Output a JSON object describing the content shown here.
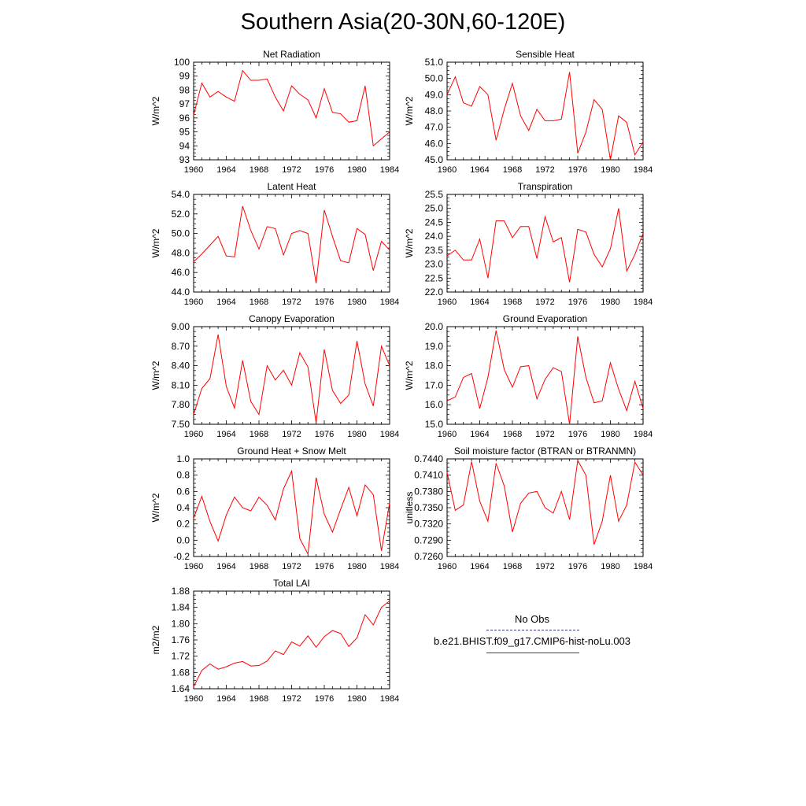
{
  "figure": {
    "title": "Southern Asia(20-30N,60-120E)",
    "line_color": "#ff0000",
    "obs_line_color": "#3a3a8f",
    "legend": {
      "obs_label": "No Obs",
      "case_label": "b.e21.BHIST.f09_g17.CMIP6-hist-noLu.003"
    }
  },
  "chart_data": [
    {
      "type": "line",
      "title": "Net Radiation",
      "ylabel": "W/m^2",
      "xlim": [
        1960,
        1984
      ],
      "ylim": [
        93,
        100
      ],
      "x_ticks": [
        1960,
        1964,
        1968,
        1972,
        1976,
        1980,
        1984
      ],
      "x_tick_labels": [
        "1960",
        "1964",
        "1968",
        "1972",
        "1976",
        "1980",
        "1984"
      ],
      "y_ticks": [
        93,
        94,
        95,
        96,
        97,
        98,
        99,
        100
      ],
      "y_tick_labels": [
        "93",
        "94",
        "95",
        "96",
        "97",
        "98",
        "99",
        "100"
      ],
      "x": [
        1960,
        1961,
        1962,
        1963,
        1964,
        1965,
        1966,
        1967,
        1968,
        1969,
        1970,
        1971,
        1972,
        1973,
        1974,
        1975,
        1976,
        1977,
        1978,
        1979,
        1980,
        1981,
        1982,
        1983,
        1984
      ],
      "series": [
        {
          "values": [
            96.2,
            98.5,
            97.5,
            97.9,
            97.5,
            97.2,
            99.4,
            98.7,
            98.7,
            98.8,
            97.5,
            96.5,
            98.3,
            97.7,
            97.3,
            96.0,
            98.1,
            96.4,
            96.3,
            95.7,
            95.8,
            98.3,
            94.0,
            94.5,
            95.0
          ]
        }
      ]
    },
    {
      "type": "line",
      "title": "Sensible Heat",
      "ylabel": "W/m^2",
      "xlim": [
        1960,
        1984
      ],
      "ylim": [
        45,
        51
      ],
      "x_ticks": [
        1960,
        1964,
        1968,
        1972,
        1976,
        1980,
        1984
      ],
      "x_tick_labels": [
        "1960",
        "1964",
        "1968",
        "1972",
        "1976",
        "1980",
        "1984"
      ],
      "y_ticks": [
        45,
        46,
        47,
        48,
        49,
        50,
        51
      ],
      "y_tick_labels": [
        "45.0",
        "46.0",
        "47.0",
        "48.0",
        "49.0",
        "50.0",
        "51.0"
      ],
      "x": [
        1960,
        1961,
        1962,
        1963,
        1964,
        1965,
        1966,
        1967,
        1968,
        1969,
        1970,
        1971,
        1972,
        1973,
        1974,
        1975,
        1976,
        1977,
        1978,
        1979,
        1980,
        1981,
        1982,
        1983,
        1984
      ],
      "series": [
        {
          "values": [
            49.0,
            50.1,
            48.5,
            48.3,
            49.5,
            49.0,
            46.2,
            48.1,
            49.7,
            47.7,
            46.8,
            48.1,
            47.4,
            47.4,
            47.5,
            50.4,
            45.4,
            46.7,
            48.7,
            48.1,
            45.0,
            47.7,
            47.3,
            45.3,
            46.1
          ]
        }
      ]
    },
    {
      "type": "line",
      "title": "Latent Heat",
      "ylabel": "W/m^2",
      "xlim": [
        1960,
        1984
      ],
      "ylim": [
        44,
        54
      ],
      "x_ticks": [
        1960,
        1964,
        1968,
        1972,
        1976,
        1980,
        1984
      ],
      "x_tick_labels": [
        "1960",
        "1964",
        "1968",
        "1972",
        "1976",
        "1980",
        "1984"
      ],
      "y_ticks": [
        44,
        46,
        48,
        50,
        52,
        54
      ],
      "y_tick_labels": [
        "44.0",
        "46.0",
        "48.0",
        "50.0",
        "52.0",
        "54.0"
      ],
      "x": [
        1960,
        1961,
        1962,
        1963,
        1964,
        1965,
        1966,
        1967,
        1968,
        1969,
        1970,
        1971,
        1972,
        1973,
        1974,
        1975,
        1976,
        1977,
        1978,
        1979,
        1980,
        1981,
        1982,
        1983,
        1984
      ],
      "series": [
        {
          "values": [
            47.1,
            47.9,
            48.8,
            49.7,
            47.7,
            47.6,
            52.8,
            50.3,
            48.4,
            50.7,
            50.5,
            47.8,
            50.0,
            50.3,
            50.0,
            44.9,
            52.4,
            49.7,
            47.2,
            47.0,
            50.5,
            49.9,
            46.2,
            49.2,
            48.3
          ]
        }
      ]
    },
    {
      "type": "line",
      "title": "Transpiration",
      "ylabel": "W/m^2",
      "xlim": [
        1960,
        1984
      ],
      "ylim": [
        22,
        25.5
      ],
      "x_ticks": [
        1960,
        1964,
        1968,
        1972,
        1976,
        1980,
        1984
      ],
      "x_tick_labels": [
        "1960",
        "1964",
        "1968",
        "1972",
        "1976",
        "1980",
        "1984"
      ],
      "y_ticks": [
        22,
        22.5,
        23,
        23.5,
        24,
        24.5,
        25,
        25.5
      ],
      "y_tick_labels": [
        "22.0",
        "22.5",
        "23.0",
        "23.5",
        "24.0",
        "24.5",
        "25.0",
        "25.5"
      ],
      "x": [
        1960,
        1961,
        1962,
        1963,
        1964,
        1965,
        1966,
        1967,
        1968,
        1969,
        1970,
        1971,
        1972,
        1973,
        1974,
        1975,
        1976,
        1977,
        1978,
        1979,
        1980,
        1981,
        1982,
        1983,
        1984
      ],
      "series": [
        {
          "values": [
            23.3,
            23.5,
            23.15,
            23.15,
            23.9,
            22.5,
            24.55,
            24.55,
            23.95,
            24.35,
            24.35,
            23.2,
            24.7,
            23.8,
            23.95,
            22.35,
            24.25,
            24.15,
            23.35,
            22.9,
            23.55,
            25.0,
            22.75,
            23.35,
            24.1
          ]
        }
      ]
    },
    {
      "type": "line",
      "title": "Canopy Evaporation",
      "ylabel": "W/m^2",
      "xlim": [
        1960,
        1984
      ],
      "ylim": [
        7.5,
        9.0
      ],
      "x_ticks": [
        1960,
        1964,
        1968,
        1972,
        1976,
        1980,
        1984
      ],
      "x_tick_labels": [
        "1960",
        "1964",
        "1968",
        "1972",
        "1976",
        "1980",
        "1984"
      ],
      "y_ticks": [
        7.5,
        7.8,
        8.1,
        8.4,
        8.7,
        9.0
      ],
      "y_tick_labels": [
        "7.50",
        "7.80",
        "8.10",
        "8.40",
        "8.70",
        "9.00"
      ],
      "x": [
        1960,
        1961,
        1962,
        1963,
        1964,
        1965,
        1966,
        1967,
        1968,
        1969,
        1970,
        1971,
        1972,
        1973,
        1974,
        1975,
        1976,
        1977,
        1978,
        1979,
        1980,
        1981,
        1982,
        1983,
        1984
      ],
      "series": [
        {
          "values": [
            7.65,
            8.05,
            8.2,
            8.88,
            8.08,
            7.75,
            8.48,
            7.85,
            7.65,
            8.4,
            8.18,
            8.33,
            8.1,
            8.6,
            8.38,
            7.52,
            8.65,
            8.02,
            7.82,
            7.95,
            8.78,
            8.12,
            7.78,
            8.7,
            8.4
          ]
        }
      ]
    },
    {
      "type": "line",
      "title": "Ground Evaporation",
      "ylabel": "W/m^2",
      "xlim": [
        1960,
        1984
      ],
      "ylim": [
        15,
        20
      ],
      "x_ticks": [
        1960,
        1964,
        1968,
        1972,
        1976,
        1980,
        1984
      ],
      "x_tick_labels": [
        "1960",
        "1964",
        "1968",
        "1972",
        "1976",
        "1980",
        "1984"
      ],
      "y_ticks": [
        15,
        16,
        17,
        18,
        19,
        20
      ],
      "y_tick_labels": [
        "15.0",
        "16.0",
        "17.0",
        "18.0",
        "19.0",
        "20.0"
      ],
      "x": [
        1960,
        1961,
        1962,
        1963,
        1964,
        1965,
        1966,
        1967,
        1968,
        1969,
        1970,
        1971,
        1972,
        1973,
        1974,
        1975,
        1976,
        1977,
        1978,
        1979,
        1980,
        1981,
        1982,
        1983,
        1984
      ],
      "series": [
        {
          "values": [
            16.2,
            16.4,
            17.4,
            17.6,
            15.8,
            17.4,
            19.8,
            17.8,
            16.9,
            17.95,
            18.0,
            16.3,
            17.3,
            17.9,
            17.7,
            15.0,
            19.5,
            17.4,
            16.1,
            16.2,
            18.15,
            16.8,
            15.7,
            17.2,
            15.8
          ]
        }
      ]
    },
    {
      "type": "line",
      "title": "Ground Heat + Snow Melt",
      "ylabel": "W/m^2",
      "xlim": [
        1960,
        1984
      ],
      "ylim": [
        -0.2,
        1.0
      ],
      "x_ticks": [
        1960,
        1964,
        1968,
        1972,
        1976,
        1980,
        1984
      ],
      "x_tick_labels": [
        "1960",
        "1964",
        "1968",
        "1972",
        "1976",
        "1980",
        "1984"
      ],
      "y_ticks": [
        -0.2,
        0.0,
        0.2,
        0.4,
        0.6,
        0.8,
        1.0
      ],
      "y_tick_labels": [
        "-0.2",
        "0.0",
        "0.2",
        "0.4",
        "0.6",
        "0.8",
        "1.0"
      ],
      "x": [
        1960,
        1961,
        1962,
        1963,
        1964,
        1965,
        1966,
        1967,
        1968,
        1969,
        1970,
        1971,
        1972,
        1973,
        1974,
        1975,
        1976,
        1977,
        1978,
        1979,
        1980,
        1981,
        1982,
        1983,
        1984
      ],
      "series": [
        {
          "values": [
            0.27,
            0.54,
            0.23,
            -0.01,
            0.31,
            0.53,
            0.4,
            0.36,
            0.53,
            0.43,
            0.25,
            0.63,
            0.85,
            0.02,
            -0.17,
            0.77,
            0.32,
            0.1,
            0.38,
            0.65,
            0.3,
            0.68,
            0.56,
            -0.13,
            0.46
          ]
        }
      ]
    },
    {
      "type": "line",
      "title": "Soil moisture factor (BTRAN or BTRANMN)",
      "ylabel": "unitless",
      "xlim": [
        1960,
        1984
      ],
      "ylim": [
        0.726,
        0.744
      ],
      "x_ticks": [
        1960,
        1964,
        1968,
        1972,
        1976,
        1980,
        1984
      ],
      "x_tick_labels": [
        "1960",
        "1964",
        "1968",
        "1972",
        "1976",
        "1980",
        "1984"
      ],
      "y_ticks": [
        0.726,
        0.729,
        0.732,
        0.735,
        0.738,
        0.741,
        0.744
      ],
      "y_tick_labels": [
        "0.7260",
        "0.7290",
        "0.7320",
        "0.7350",
        "0.7380",
        "0.7410",
        "0.7440"
      ],
      "x": [
        1960,
        1961,
        1962,
        1963,
        1964,
        1965,
        1966,
        1967,
        1968,
        1969,
        1970,
        1971,
        1972,
        1973,
        1974,
        1975,
        1976,
        1977,
        1978,
        1979,
        1980,
        1981,
        1982,
        1983,
        1984
      ],
      "series": [
        {
          "values": [
            0.7415,
            0.7345,
            0.7355,
            0.7435,
            0.7362,
            0.7325,
            0.7432,
            0.739,
            0.7305,
            0.7358,
            0.7377,
            0.738,
            0.735,
            0.734,
            0.738,
            0.7328,
            0.7437,
            0.741,
            0.7282,
            0.7325,
            0.741,
            0.7325,
            0.7355,
            0.7434,
            0.741
          ]
        }
      ]
    },
    {
      "type": "line",
      "title": "Total LAI",
      "ylabel": "m2/m2",
      "xlim": [
        1960,
        1984
      ],
      "ylim": [
        1.64,
        1.88
      ],
      "x_ticks": [
        1960,
        1964,
        1968,
        1972,
        1976,
        1980,
        1984
      ],
      "x_tick_labels": [
        "1960",
        "1964",
        "1968",
        "1972",
        "1976",
        "1980",
        "1984"
      ],
      "y_ticks": [
        1.64,
        1.68,
        1.72,
        1.76,
        1.8,
        1.84,
        1.88
      ],
      "y_tick_labels": [
        "1.64",
        "1.68",
        "1.72",
        "1.76",
        "1.80",
        "1.84",
        "1.88"
      ],
      "x": [
        1960,
        1961,
        1962,
        1963,
        1964,
        1965,
        1966,
        1967,
        1968,
        1969,
        1970,
        1971,
        1972,
        1973,
        1974,
        1975,
        1976,
        1977,
        1978,
        1979,
        1980,
        1981,
        1982,
        1983,
        1984
      ],
      "series": [
        {
          "values": [
            1.645,
            1.685,
            1.701,
            1.688,
            1.694,
            1.703,
            1.707,
            1.696,
            1.697,
            1.708,
            1.733,
            1.724,
            1.755,
            1.745,
            1.77,
            1.742,
            1.768,
            1.783,
            1.776,
            1.744,
            1.765,
            1.822,
            1.797,
            1.84,
            1.856
          ]
        }
      ]
    }
  ]
}
